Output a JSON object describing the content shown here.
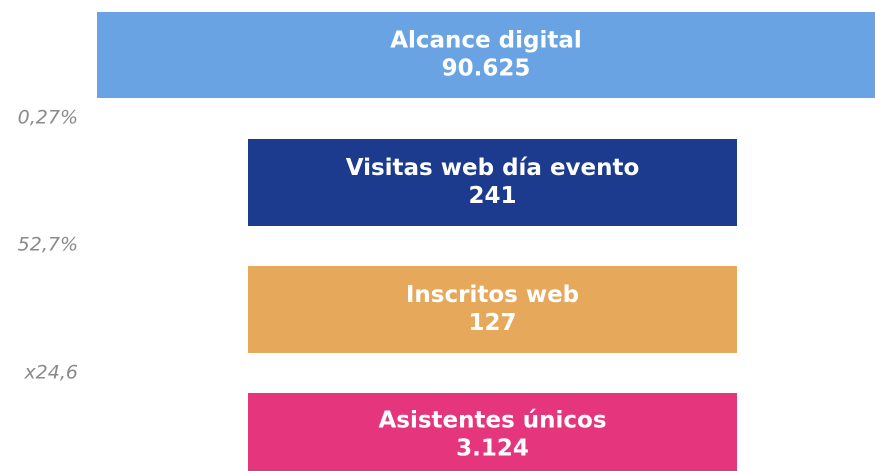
{
  "funnel": {
    "stages": [
      {
        "label": "Alcance digital",
        "value": "90.625",
        "color": "#6aa3e3"
      },
      {
        "label": "Visitas web día evento",
        "value": "241",
        "color": "#1c3b8e"
      },
      {
        "label": "Inscritos web",
        "value": "127",
        "color": "#e6a85b"
      },
      {
        "label": "Asistentes únicos",
        "value": "3.124",
        "color": "#e5357c"
      }
    ],
    "conversions": [
      "0,27%",
      "52,7%",
      "x24,6"
    ]
  }
}
